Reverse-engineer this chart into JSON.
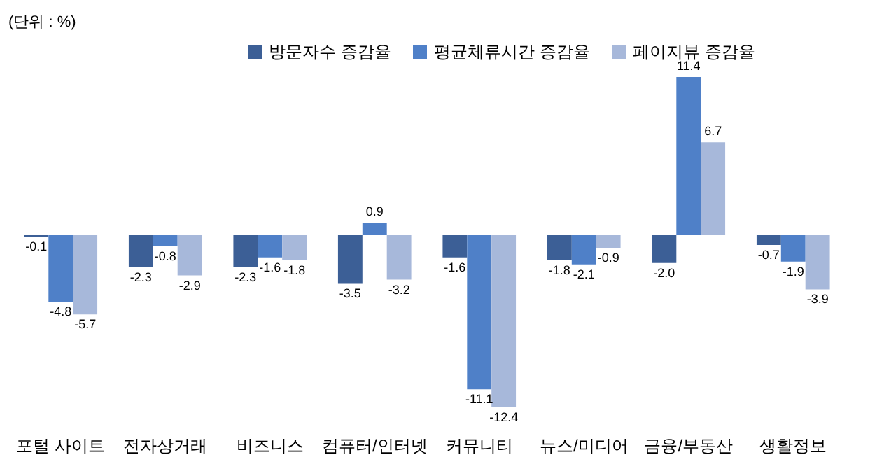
{
  "chart_data": {
    "type": "bar",
    "annotations": [
      "(단위 : %)"
    ],
    "legend": "top",
    "categories": [
      "포털 사이트",
      "전자상거래",
      "비즈니스",
      "컴퓨터/인터넷",
      "커뮤니티",
      "뉴스/미디어",
      "금융/부동산",
      "생활정보"
    ],
    "series": [
      {
        "name": "방문자수 증감율",
        "color": "#3c5f96",
        "values": [
          -0.1,
          -2.3,
          -2.3,
          -3.5,
          -1.6,
          -1.8,
          -2.0,
          -0.7
        ],
        "value_labels": [
          "-0.1",
          "-2.3",
          "-2.3",
          "-3.5",
          "-1.6",
          "-1.8",
          "-2.0",
          "-0.7"
        ]
      },
      {
        "name": "평균체류시간 증감율",
        "color": "#4f80c8",
        "values": [
          -4.8,
          -0.8,
          -1.6,
          0.9,
          -11.1,
          -2.1,
          11.4,
          -1.9
        ],
        "value_labels": [
          "-4.8",
          "-0.8",
          "-1.6",
          "0.9",
          "-11.1",
          "-2.1",
          "11.4",
          "-1.9"
        ]
      },
      {
        "name": "페이지뷰 증감율",
        "color": "#a7b8da",
        "values": [
          -5.7,
          -2.9,
          -1.8,
          -3.2,
          -12.4,
          -0.9,
          6.7,
          -3.9
        ],
        "value_labels": [
          "-5.7",
          "-2.9",
          "-1.8",
          "-3.2",
          "-12.4",
          "-0.9",
          "6.7",
          "-3.9"
        ]
      }
    ]
  }
}
